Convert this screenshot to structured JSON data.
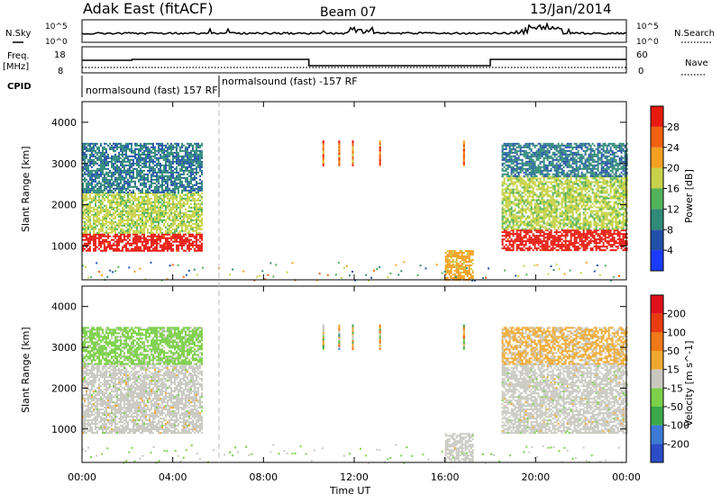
{
  "header": {
    "title": "Adak East (fitACF)",
    "beam": "Beam 07",
    "date": "13/Jan/2014"
  },
  "strips": {
    "nsky": {
      "label": "N.Sky",
      "ticks": [
        "10^5",
        "10^0"
      ]
    },
    "nsearch": {
      "label": "N.Search",
      "ticks": [
        "10^5",
        "10^0"
      ]
    },
    "freq": {
      "label_line1": "Freq.",
      "label_line2": "[MHz]",
      "ticks": [
        "18",
        "8"
      ]
    },
    "nave": {
      "label": "Nave",
      "ticks": [
        "60",
        "0"
      ]
    },
    "cpid": {
      "label": "CPID",
      "modes": [
        "normalsound (fast) 157 RF",
        "normalsound (fast) -157 RF"
      ]
    }
  },
  "colors": {
    "power": [
      "#1a3cff",
      "#2150a8",
      "#2f8a78",
      "#52b35a",
      "#c8d24a",
      "#f5a020",
      "#f06010",
      "#e81a10"
    ],
    "velocity": [
      "#2a4cc8",
      "#3c7ad6",
      "#3aa84a",
      "#7cd04a",
      "#c8c8c0",
      "#f0a830",
      "#f07818",
      "#e83c10",
      "#e0101a"
    ]
  },
  "chart_data": [
    {
      "type": "heatmap",
      "quantity": "Power",
      "xlabel": "Time UT",
      "ylabel": "Slant Range [km]",
      "xlim": [
        0,
        24
      ],
      "ylim": [
        180,
        4500
      ],
      "x_ticks": [
        "00:00",
        "04:00",
        "08:00",
        "12:00",
        "16:00",
        "20:00",
        "00:00"
      ],
      "y_ticks": [
        "1000",
        "2000",
        "3000",
        "4000"
      ],
      "colorbar": {
        "label": "Power [dB]",
        "ticks": [
          "4",
          "8",
          "12",
          "16",
          "20",
          "24",
          "28"
        ],
        "range": [
          0,
          30
        ]
      },
      "bands": [
        {
          "t": [
            0.0,
            5.3
          ],
          "range_km": [
            900,
            1300
          ],
          "level": 28
        },
        {
          "t": [
            0.0,
            5.3
          ],
          "range_km": [
            1300,
            2300
          ],
          "level": 16
        },
        {
          "t": [
            0.0,
            5.3
          ],
          "range_km": [
            2300,
            3500
          ],
          "level": 8
        },
        {
          "t": [
            16.0,
            17.2
          ],
          "range_km": [
            200,
            900
          ],
          "level": 20
        },
        {
          "t": [
            18.5,
            24.0
          ],
          "range_km": [
            900,
            1400
          ],
          "level": 28
        },
        {
          "t": [
            18.5,
            24.0
          ],
          "range_km": [
            1400,
            2700
          ],
          "level": 16
        },
        {
          "t": [
            18.5,
            24.0
          ],
          "range_km": [
            2700,
            3500
          ],
          "level": 8
        }
      ]
    },
    {
      "type": "heatmap",
      "quantity": "Velocity",
      "xlabel": "Time UT",
      "ylabel": "Slant Range [km]",
      "xlim": [
        0,
        24
      ],
      "ylim": [
        180,
        4500
      ],
      "x_ticks": [
        "00:00",
        "04:00",
        "08:00",
        "12:00",
        "16:00",
        "20:00",
        "00:00"
      ],
      "y_ticks": [
        "1000",
        "2000",
        "3000",
        "4000"
      ],
      "colorbar": {
        "label": "Velocity [m s^-1]",
        "ticks": [
          "200",
          "100",
          "50",
          "15",
          "-15",
          "-50",
          "-100",
          "-200"
        ],
        "range": [
          -250,
          250
        ]
      },
      "bands": [
        {
          "t": [
            0.0,
            5.3
          ],
          "range_km": [
            900,
            2600
          ],
          "level": 0
        },
        {
          "t": [
            0.0,
            5.3
          ],
          "range_km": [
            2600,
            3500
          ],
          "level": -50
        },
        {
          "t": [
            16.0,
            17.2
          ],
          "range_km": [
            200,
            900
          ],
          "level": 0
        },
        {
          "t": [
            18.5,
            24.0
          ],
          "range_km": [
            900,
            2600
          ],
          "level": 0
        },
        {
          "t": [
            18.5,
            24.0
          ],
          "range_km": [
            2600,
            3500
          ],
          "level": 40
        }
      ]
    }
  ]
}
